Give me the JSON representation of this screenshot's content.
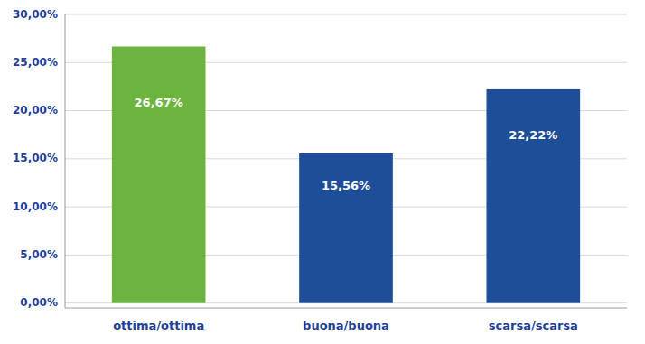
{
  "chart_data": {
    "type": "bar",
    "categories": [
      "ottima/ottima",
      "buona/buona",
      "scarsa/scarsa"
    ],
    "values": [
      26.67,
      15.56,
      22.22
    ],
    "value_labels": [
      "26,67%",
      "15,56%",
      "22,22%"
    ],
    "colors": [
      "#6db33f",
      "#1f4e99",
      "#1f4e99"
    ],
    "ylim": [
      -0.5,
      30
    ],
    "yticks": [
      {
        "value": 0,
        "label": "0,00%"
      },
      {
        "value": 5,
        "label": "5,00%"
      },
      {
        "value": 10,
        "label": "10,00%"
      },
      {
        "value": 15,
        "label": "15,00%"
      },
      {
        "value": 20,
        "label": "20,00%"
      },
      {
        "value": 25,
        "label": "25,00%"
      },
      {
        "value": 30,
        "label": "30,00%"
      }
    ],
    "grid": true,
    "data_labels": true
  }
}
